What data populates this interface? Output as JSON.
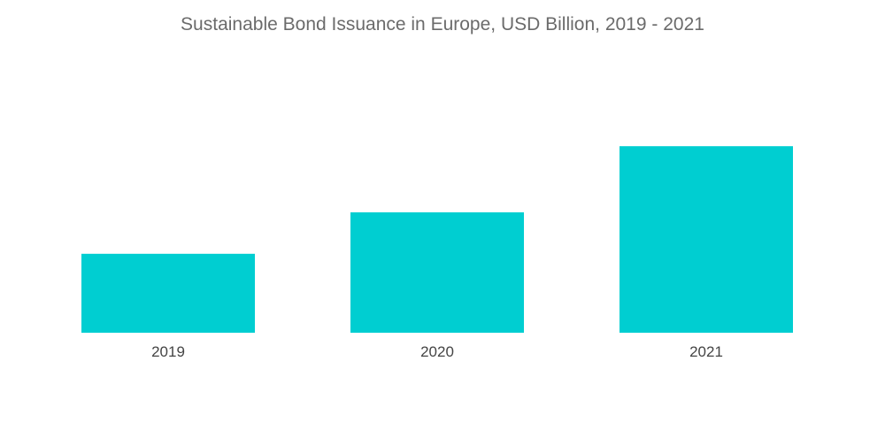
{
  "chart_data": {
    "type": "bar",
    "title": "Sustainable Bond Issuance in Europe, USD Billion, 2019 - 2021",
    "categories": [
      "2019",
      "2020",
      "2021"
    ],
    "values": [
      80,
      122,
      189
    ],
    "xlabel": "",
    "ylabel": "",
    "ylim": [
      0,
      260
    ],
    "grid": false,
    "legend": "none",
    "bar_color": "#00CED1"
  }
}
